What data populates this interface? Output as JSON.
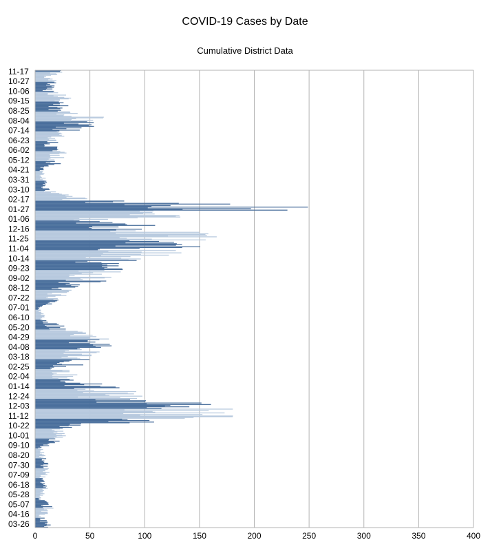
{
  "chart_data": {
    "type": "bar",
    "orientation": "horizontal",
    "title": "COVID-19 Cases by Date",
    "subtitle": "Cumulative District Data",
    "xlabel": "",
    "ylabel": "",
    "xlim": [
      0,
      400
    ],
    "x_ticks": [
      0,
      50,
      100,
      150,
      200,
      250,
      300,
      350,
      400
    ],
    "grid": "vertical",
    "legend": "none",
    "bar_color_primary": "#4a6f9c",
    "bar_color_light": "#b7c9de",
    "category_labels_bottom_to_top": [
      "03-26",
      "04-16",
      "05-07",
      "05-28",
      "06-18",
      "07-09",
      "07-30",
      "08-20",
      "09-10",
      "10-01",
      "10-22",
      "11-12",
      "12-03",
      "12-24",
      "01-14",
      "02-04",
      "02-25",
      "03-18",
      "04-08",
      "04-29",
      "05-20",
      "06-10",
      "07-01",
      "07-22",
      "08-12",
      "09-02",
      "09-23",
      "10-14",
      "11-04",
      "11-25",
      "12-16",
      "01-06",
      "01-27",
      "02-17",
      "03-10",
      "03-31",
      "04-21",
      "05-12",
      "06-02",
      "06-23",
      "07-14",
      "08-04",
      "08-25",
      "09-15",
      "10-06",
      "10-27",
      "11-17"
    ],
    "weekly_values_bottom_to_top": [
      12,
      6,
      14,
      5,
      10,
      8,
      12,
      8,
      6,
      22,
      20,
      140,
      150,
      80,
      70,
      28,
      30,
      38,
      60,
      50,
      25,
      8,
      5,
      18,
      30,
      55,
      60,
      70,
      120,
      150,
      100,
      60,
      250,
      40,
      10,
      8,
      6,
      25,
      20,
      15,
      30,
      60,
      25,
      30,
      15,
      15,
      20
    ]
  }
}
